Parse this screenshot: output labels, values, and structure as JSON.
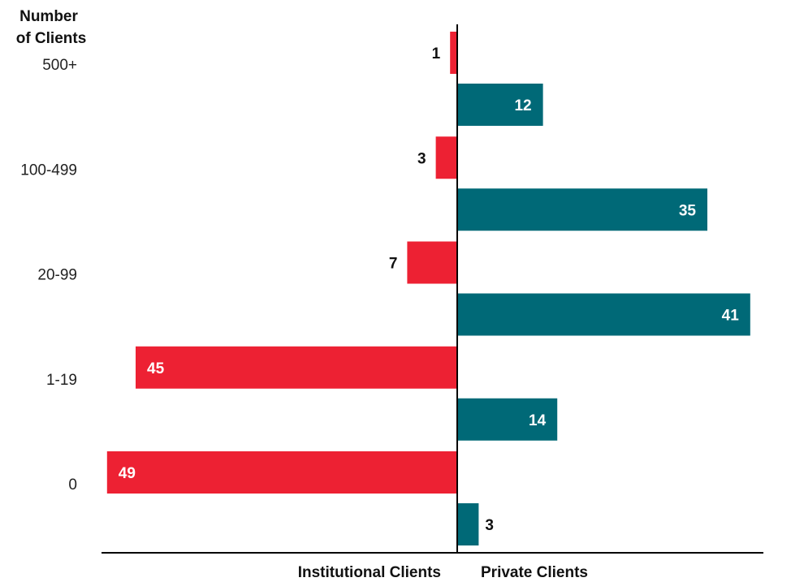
{
  "chart_data": {
    "type": "bar",
    "orientation": "horizontal",
    "layout": "diverging",
    "y_title_line1": "Number",
    "y_title_line2": "of Clients",
    "categories": [
      "500+",
      "100-499",
      "20-99",
      "1-19",
      "0"
    ],
    "series": [
      {
        "name": "Institutional Clients",
        "values": [
          1,
          3,
          7,
          45,
          49
        ],
        "color": "#ed2133",
        "direction": "left"
      },
      {
        "name": "Private Clients",
        "values": [
          12,
          35,
          41,
          14,
          3
        ],
        "color": "#006977",
        "direction": "right"
      }
    ],
    "xlim": [
      0,
      50
    ],
    "grid": false,
    "legend": "none"
  }
}
